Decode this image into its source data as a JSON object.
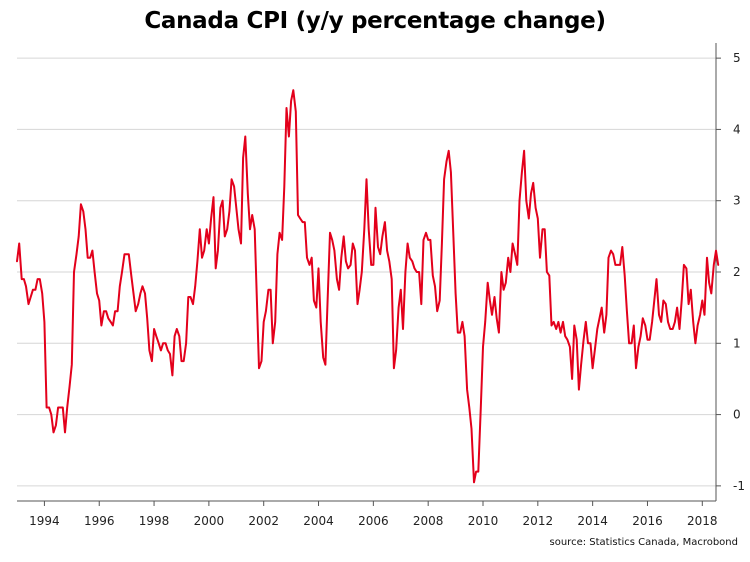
{
  "chart_data": {
    "type": "line",
    "title": "Canada CPI (y/y percentage change)",
    "source": "source: Statistics Canada, Macrobond",
    "xlabel": "",
    "ylabel": "",
    "xlim": [
      1993.0,
      2018.5
    ],
    "ylim": [
      -1.1,
      5.1
    ],
    "x_ticks": [
      1994,
      1996,
      1998,
      2000,
      2002,
      2004,
      2006,
      2008,
      2010,
      2012,
      2014,
      2016,
      2018
    ],
    "y_ticks": [
      -1,
      0,
      1,
      2,
      3,
      4,
      5
    ],
    "y_axis_position": "right",
    "grid": "horizontal",
    "legend": "none",
    "series": [
      {
        "color": "#e3001b",
        "points": [
          [
            1993.0,
            2.15
          ],
          [
            1993.08,
            2.4
          ],
          [
            1993.17,
            1.9
          ],
          [
            1993.25,
            1.9
          ],
          [
            1993.33,
            1.8
          ],
          [
            1993.42,
            1.55
          ],
          [
            1993.5,
            1.65
          ],
          [
            1993.58,
            1.75
          ],
          [
            1993.67,
            1.75
          ],
          [
            1993.75,
            1.9
          ],
          [
            1993.83,
            1.9
          ],
          [
            1993.92,
            1.7
          ],
          [
            1994.0,
            1.3
          ],
          [
            1994.08,
            0.1
          ],
          [
            1994.17,
            0.1
          ],
          [
            1994.25,
            0.0
          ],
          [
            1994.33,
            -0.25
          ],
          [
            1994.42,
            -0.15
          ],
          [
            1994.5,
            0.1
          ],
          [
            1994.58,
            0.1
          ],
          [
            1994.67,
            0.1
          ],
          [
            1994.75,
            -0.25
          ],
          [
            1994.83,
            0.1
          ],
          [
            1994.92,
            0.4
          ],
          [
            1995.0,
            0.7
          ],
          [
            1995.08,
            2.0
          ],
          [
            1995.17,
            2.25
          ],
          [
            1995.25,
            2.5
          ],
          [
            1995.33,
            2.95
          ],
          [
            1995.42,
            2.85
          ],
          [
            1995.5,
            2.6
          ],
          [
            1995.58,
            2.2
          ],
          [
            1995.67,
            2.2
          ],
          [
            1995.75,
            2.3
          ],
          [
            1995.83,
            2.0
          ],
          [
            1995.92,
            1.7
          ],
          [
            1996.0,
            1.6
          ],
          [
            1996.08,
            1.25
          ],
          [
            1996.17,
            1.45
          ],
          [
            1996.25,
            1.45
          ],
          [
            1996.33,
            1.35
          ],
          [
            1996.42,
            1.3
          ],
          [
            1996.5,
            1.25
          ],
          [
            1996.58,
            1.45
          ],
          [
            1996.67,
            1.45
          ],
          [
            1996.75,
            1.8
          ],
          [
            1996.83,
            2.0
          ],
          [
            1996.92,
            2.25
          ],
          [
            1997.0,
            2.25
          ],
          [
            1997.08,
            2.25
          ],
          [
            1997.17,
            1.95
          ],
          [
            1997.25,
            1.7
          ],
          [
            1997.33,
            1.45
          ],
          [
            1997.42,
            1.55
          ],
          [
            1997.5,
            1.7
          ],
          [
            1997.58,
            1.8
          ],
          [
            1997.67,
            1.7
          ],
          [
            1997.75,
            1.35
          ],
          [
            1997.83,
            0.9
          ],
          [
            1997.92,
            0.75
          ],
          [
            1998.0,
            1.2
          ],
          [
            1998.08,
            1.1
          ],
          [
            1998.17,
            1.0
          ],
          [
            1998.25,
            0.9
          ],
          [
            1998.33,
            1.0
          ],
          [
            1998.42,
            1.0
          ],
          [
            1998.5,
            0.9
          ],
          [
            1998.58,
            0.85
          ],
          [
            1998.67,
            0.55
          ],
          [
            1998.75,
            1.1
          ],
          [
            1998.83,
            1.2
          ],
          [
            1998.92,
            1.1
          ],
          [
            1999.0,
            0.75
          ],
          [
            1999.08,
            0.75
          ],
          [
            1999.17,
            1.0
          ],
          [
            1999.25,
            1.65
          ],
          [
            1999.33,
            1.65
          ],
          [
            1999.42,
            1.55
          ],
          [
            1999.5,
            1.8
          ],
          [
            1999.58,
            2.15
          ],
          [
            1999.67,
            2.6
          ],
          [
            1999.75,
            2.2
          ],
          [
            1999.83,
            2.3
          ],
          [
            1999.92,
            2.6
          ],
          [
            2000.0,
            2.4
          ],
          [
            2000.08,
            2.75
          ],
          [
            2000.17,
            3.05
          ],
          [
            2000.25,
            2.05
          ],
          [
            2000.33,
            2.3
          ],
          [
            2000.42,
            2.9
          ],
          [
            2000.5,
            3.0
          ],
          [
            2000.58,
            2.5
          ],
          [
            2000.67,
            2.6
          ],
          [
            2000.75,
            2.85
          ],
          [
            2000.83,
            3.3
          ],
          [
            2000.92,
            3.2
          ],
          [
            2001.0,
            2.9
          ],
          [
            2001.08,
            2.6
          ],
          [
            2001.17,
            2.4
          ],
          [
            2001.25,
            3.6
          ],
          [
            2001.33,
            3.9
          ],
          [
            2001.42,
            3.1
          ],
          [
            2001.5,
            2.6
          ],
          [
            2001.58,
            2.8
          ],
          [
            2001.67,
            2.6
          ],
          [
            2001.75,
            1.6
          ],
          [
            2001.83,
            0.65
          ],
          [
            2001.92,
            0.75
          ],
          [
            2002.0,
            1.3
          ],
          [
            2002.08,
            1.45
          ],
          [
            2002.17,
            1.75
          ],
          [
            2002.25,
            1.75
          ],
          [
            2002.33,
            1.0
          ],
          [
            2002.42,
            1.3
          ],
          [
            2002.5,
            2.25
          ],
          [
            2002.58,
            2.55
          ],
          [
            2002.67,
            2.45
          ],
          [
            2002.75,
            3.2
          ],
          [
            2002.83,
            4.3
          ],
          [
            2002.92,
            3.9
          ],
          [
            2003.0,
            4.4
          ],
          [
            2003.08,
            4.55
          ],
          [
            2003.17,
            4.25
          ],
          [
            2003.25,
            2.8
          ],
          [
            2003.33,
            2.75
          ],
          [
            2003.42,
            2.7
          ],
          [
            2003.5,
            2.7
          ],
          [
            2003.58,
            2.2
          ],
          [
            2003.67,
            2.1
          ],
          [
            2003.75,
            2.2
          ],
          [
            2003.83,
            1.6
          ],
          [
            2003.92,
            1.5
          ],
          [
            2004.0,
            2.05
          ],
          [
            2004.08,
            1.3
          ],
          [
            2004.17,
            0.8
          ],
          [
            2004.25,
            0.7
          ],
          [
            2004.33,
            1.6
          ],
          [
            2004.42,
            2.55
          ],
          [
            2004.5,
            2.45
          ],
          [
            2004.58,
            2.3
          ],
          [
            2004.67,
            1.9
          ],
          [
            2004.75,
            1.75
          ],
          [
            2004.83,
            2.2
          ],
          [
            2004.92,
            2.5
          ],
          [
            2005.0,
            2.15
          ],
          [
            2005.08,
            2.05
          ],
          [
            2005.17,
            2.1
          ],
          [
            2005.25,
            2.4
          ],
          [
            2005.33,
            2.3
          ],
          [
            2005.42,
            1.55
          ],
          [
            2005.5,
            1.75
          ],
          [
            2005.58,
            2.0
          ],
          [
            2005.67,
            2.6
          ],
          [
            2005.75,
            3.3
          ],
          [
            2005.83,
            2.6
          ],
          [
            2005.92,
            2.1
          ],
          [
            2006.0,
            2.1
          ],
          [
            2006.08,
            2.9
          ],
          [
            2006.17,
            2.35
          ],
          [
            2006.25,
            2.25
          ],
          [
            2006.33,
            2.5
          ],
          [
            2006.42,
            2.7
          ],
          [
            2006.5,
            2.3
          ],
          [
            2006.58,
            2.15
          ],
          [
            2006.67,
            1.9
          ],
          [
            2006.75,
            0.65
          ],
          [
            2006.83,
            0.9
          ],
          [
            2006.92,
            1.5
          ],
          [
            2007.0,
            1.75
          ],
          [
            2007.08,
            1.2
          ],
          [
            2007.17,
            2.0
          ],
          [
            2007.25,
            2.4
          ],
          [
            2007.33,
            2.2
          ],
          [
            2007.42,
            2.15
          ],
          [
            2007.5,
            2.05
          ],
          [
            2007.58,
            2.0
          ],
          [
            2007.67,
            2.0
          ],
          [
            2007.75,
            1.55
          ],
          [
            2007.83,
            2.45
          ],
          [
            2007.92,
            2.55
          ],
          [
            2008.0,
            2.45
          ],
          [
            2008.08,
            2.45
          ],
          [
            2008.17,
            1.95
          ],
          [
            2008.25,
            1.8
          ],
          [
            2008.33,
            1.45
          ],
          [
            2008.42,
            1.6
          ],
          [
            2008.5,
            2.4
          ],
          [
            2008.58,
            3.3
          ],
          [
            2008.67,
            3.55
          ],
          [
            2008.75,
            3.7
          ],
          [
            2008.83,
            3.4
          ],
          [
            2008.92,
            2.5
          ],
          [
            2009.0,
            1.7
          ],
          [
            2009.08,
            1.15
          ],
          [
            2009.17,
            1.15
          ],
          [
            2009.25,
            1.3
          ],
          [
            2009.33,
            1.1
          ],
          [
            2009.42,
            0.35
          ],
          [
            2009.5,
            0.1
          ],
          [
            2009.58,
            -0.2
          ],
          [
            2009.67,
            -0.95
          ],
          [
            2009.75,
            -0.8
          ],
          [
            2009.83,
            -0.8
          ],
          [
            2009.92,
            0.1
          ],
          [
            2010.0,
            0.95
          ],
          [
            2010.08,
            1.3
          ],
          [
            2010.17,
            1.85
          ],
          [
            2010.25,
            1.6
          ],
          [
            2010.33,
            1.4
          ],
          [
            2010.42,
            1.65
          ],
          [
            2010.5,
            1.35
          ],
          [
            2010.58,
            1.15
          ],
          [
            2010.67,
            2.0
          ],
          [
            2010.75,
            1.75
          ],
          [
            2010.83,
            1.85
          ],
          [
            2010.92,
            2.2
          ],
          [
            2011.0,
            2.0
          ],
          [
            2011.08,
            2.4
          ],
          [
            2011.17,
            2.25
          ],
          [
            2011.25,
            2.1
          ],
          [
            2011.33,
            3.0
          ],
          [
            2011.42,
            3.4
          ],
          [
            2011.5,
            3.7
          ],
          [
            2011.58,
            3.0
          ],
          [
            2011.67,
            2.75
          ],
          [
            2011.75,
            3.1
          ],
          [
            2011.83,
            3.25
          ],
          [
            2011.92,
            2.9
          ],
          [
            2012.0,
            2.75
          ],
          [
            2012.08,
            2.2
          ],
          [
            2012.17,
            2.6
          ],
          [
            2012.25,
            2.6
          ],
          [
            2012.33,
            2.0
          ],
          [
            2012.42,
            1.95
          ],
          [
            2012.5,
            1.25
          ],
          [
            2012.58,
            1.3
          ],
          [
            2012.67,
            1.2
          ],
          [
            2012.75,
            1.3
          ],
          [
            2012.83,
            1.15
          ],
          [
            2012.92,
            1.3
          ],
          [
            2013.0,
            1.1
          ],
          [
            2013.08,
            1.05
          ],
          [
            2013.17,
            0.95
          ],
          [
            2013.25,
            0.5
          ],
          [
            2013.33,
            1.25
          ],
          [
            2013.42,
            1.05
          ],
          [
            2013.5,
            0.35
          ],
          [
            2013.58,
            0.7
          ],
          [
            2013.67,
            1.05
          ],
          [
            2013.75,
            1.3
          ],
          [
            2013.83,
            1.0
          ],
          [
            2013.92,
            1.0
          ],
          [
            2014.0,
            0.65
          ],
          [
            2014.08,
            0.9
          ],
          [
            2014.17,
            1.2
          ],
          [
            2014.25,
            1.35
          ],
          [
            2014.33,
            1.5
          ],
          [
            2014.42,
            1.15
          ],
          [
            2014.5,
            1.4
          ],
          [
            2014.58,
            2.2
          ],
          [
            2014.67,
            2.3
          ],
          [
            2014.75,
            2.25
          ],
          [
            2014.83,
            2.1
          ],
          [
            2014.92,
            2.1
          ],
          [
            2015.0,
            2.1
          ],
          [
            2015.08,
            2.35
          ],
          [
            2015.17,
            1.95
          ],
          [
            2015.25,
            1.45
          ],
          [
            2015.33,
            1.0
          ],
          [
            2015.42,
            1.0
          ],
          [
            2015.5,
            1.25
          ],
          [
            2015.58,
            0.65
          ],
          [
            2015.67,
            0.95
          ],
          [
            2015.75,
            1.1
          ],
          [
            2015.83,
            1.35
          ],
          [
            2015.92,
            1.25
          ],
          [
            2016.0,
            1.05
          ],
          [
            2016.08,
            1.05
          ],
          [
            2016.17,
            1.3
          ],
          [
            2016.25,
            1.6
          ],
          [
            2016.33,
            1.9
          ],
          [
            2016.42,
            1.4
          ],
          [
            2016.5,
            1.3
          ],
          [
            2016.58,
            1.6
          ],
          [
            2016.67,
            1.55
          ],
          [
            2016.75,
            1.3
          ],
          [
            2016.83,
            1.2
          ],
          [
            2016.92,
            1.2
          ],
          [
            2017.0,
            1.3
          ],
          [
            2017.08,
            1.5
          ],
          [
            2017.17,
            1.2
          ],
          [
            2017.25,
            1.6
          ],
          [
            2017.33,
            2.1
          ],
          [
            2017.42,
            2.05
          ],
          [
            2017.5,
            1.55
          ],
          [
            2017.58,
            1.75
          ],
          [
            2017.67,
            1.3
          ],
          [
            2017.75,
            1.0
          ],
          [
            2017.83,
            1.25
          ],
          [
            2017.92,
            1.4
          ],
          [
            2018.0,
            1.6
          ],
          [
            2018.08,
            1.4
          ],
          [
            2018.17,
            2.2
          ],
          [
            2018.25,
            1.85
          ],
          [
            2018.33,
            1.7
          ],
          [
            2018.42,
            2.1
          ],
          [
            2018.5,
            2.3
          ],
          [
            2018.58,
            2.1
          ]
        ]
      }
    ]
  }
}
